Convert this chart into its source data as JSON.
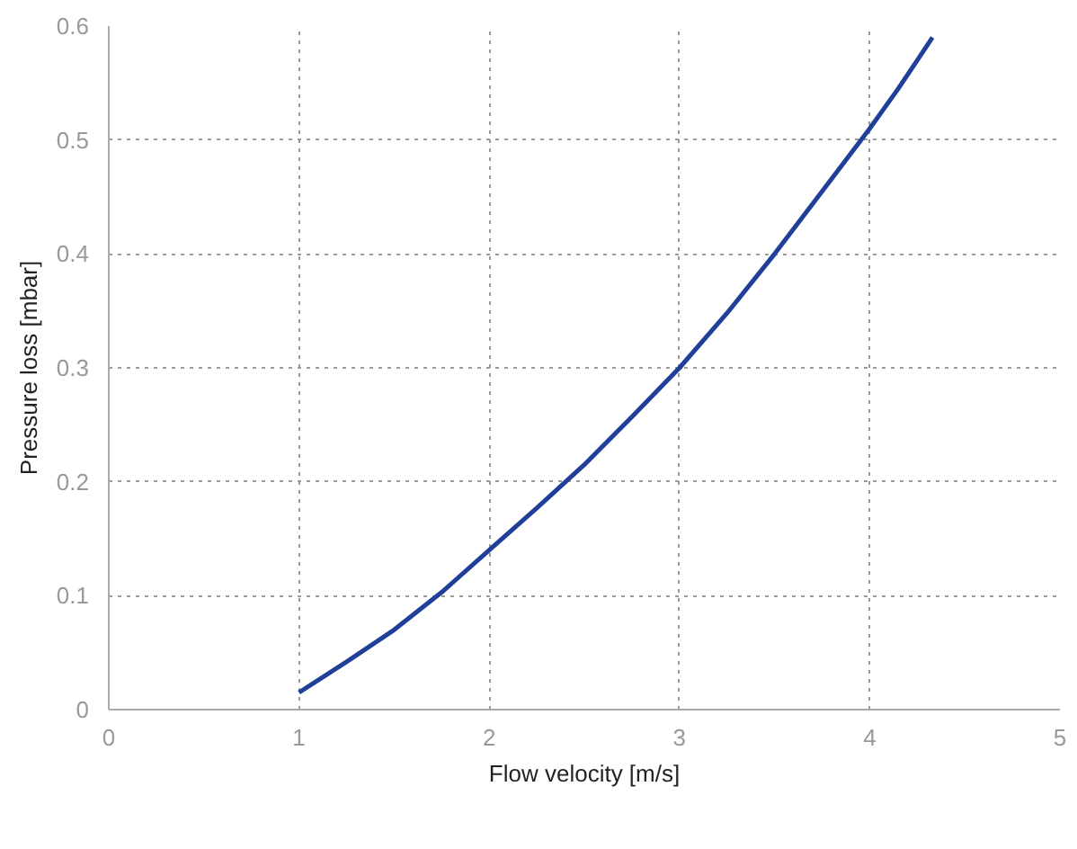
{
  "chart_data": {
    "type": "line",
    "xlabel": "Flow velocity [m/s]",
    "ylabel": "Pressure loss [mbar]",
    "x": [
      1,
      1.25,
      1.5,
      1.75,
      2,
      2.25,
      2.5,
      2.75,
      3,
      3.25,
      3.5,
      3.75,
      4,
      4.15,
      4.33
    ],
    "series": [
      {
        "color": "#1f3f99",
        "values": [
          0.015,
          0.042,
          0.07,
          0.103,
          0.14,
          0.177,
          0.215,
          0.257,
          0.3,
          0.348,
          0.4,
          0.455,
          0.51,
          0.545,
          0.59
        ]
      }
    ],
    "xlim": [
      0,
      5
    ],
    "ylim": [
      0,
      0.6
    ],
    "xticks": [
      0,
      1,
      2,
      3,
      4,
      5
    ],
    "yticks": [
      0,
      0.1,
      0.2,
      0.3,
      0.4,
      0.5,
      0.6
    ],
    "grid": true,
    "line_style": "solid"
  }
}
